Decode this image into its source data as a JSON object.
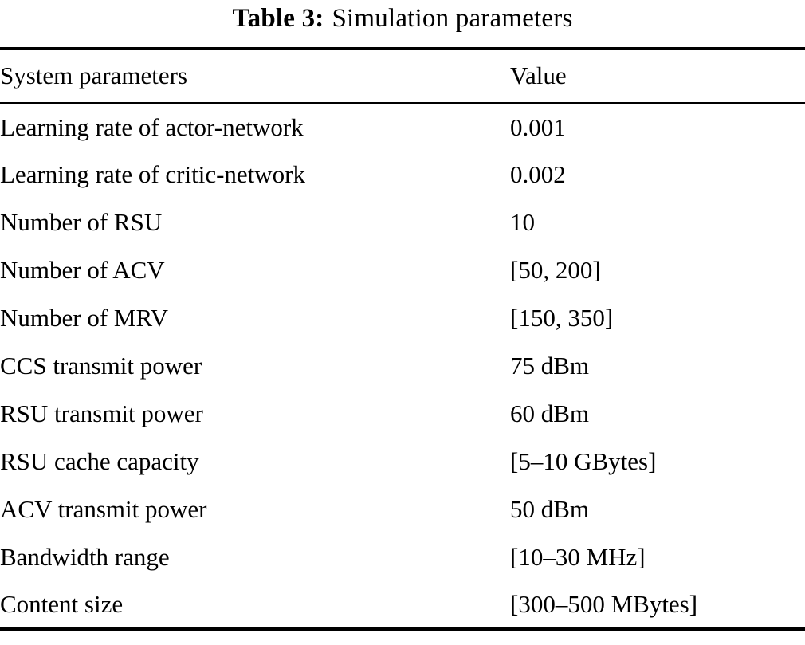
{
  "caption": {
    "label": "Table 3:",
    "text": "Simulation parameters"
  },
  "table": {
    "columns": [
      "System parameters",
      "Value"
    ],
    "rows": [
      {
        "parameter": "Learning rate of actor-network",
        "value": "0.001"
      },
      {
        "parameter": "Learning rate of critic-network",
        "value": "0.002"
      },
      {
        "parameter": "Number of RSU",
        "value": "10"
      },
      {
        "parameter": "Number of ACV",
        "value": "[50, 200]"
      },
      {
        "parameter": "Number of MRV",
        "value": "[150, 350]"
      },
      {
        "parameter": "CCS transmit power",
        "value": "75 dBm"
      },
      {
        "parameter": "RSU transmit power",
        "value": "60 dBm"
      },
      {
        "parameter": "RSU cache capacity",
        "value": "[5–10 GBytes]"
      },
      {
        "parameter": "ACV transmit power",
        "value": "50 dBm"
      },
      {
        "parameter": "Bandwidth range",
        "value": "[10–30 MHz]"
      },
      {
        "parameter": "Content size",
        "value": "[300–500 MBytes]"
      }
    ]
  }
}
